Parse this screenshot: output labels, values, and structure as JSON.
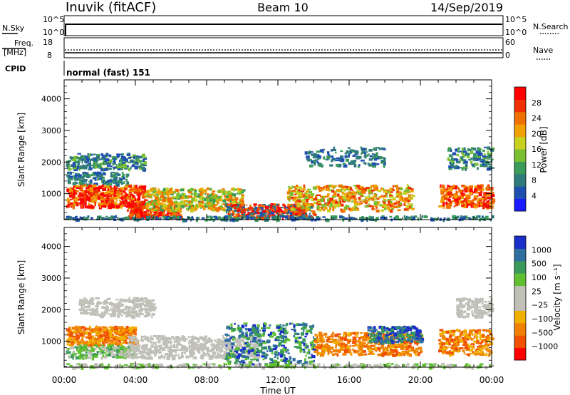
{
  "header": {
    "station": "Inuvik (fitACF)",
    "beam": "Beam 10",
    "date": "14/Sep/2019"
  },
  "top_panels": {
    "nsky": {
      "label": "N.Sky",
      "ticks": [
        "10^5",
        "10^0"
      ],
      "right_label": "N.Search",
      "right_ticks": [
        "10^5",
        "10^0"
      ]
    },
    "freq": {
      "label_line1": "Freq.",
      "label_line2": "[MHz]",
      "ticks": [
        "18",
        "8"
      ],
      "right_label": "Nave",
      "right_ticks": [
        "60",
        "0"
      ]
    },
    "cpid": {
      "label": "CPID",
      "value": "normal (fast) 151"
    }
  },
  "colors": {
    "power_scale": [
      "#1a1aff",
      "#1f4fb0",
      "#2f7a7a",
      "#3a9a5a",
      "#7ac030",
      "#c8d020",
      "#f0a000",
      "#f07000",
      "#f03000",
      "#ff0000"
    ],
    "velocity_scale": [
      "#ff0000",
      "#f05000",
      "#f08000",
      "#f0b000",
      "#c0c0b8",
      "#c0c0b8",
      "#60c030",
      "#3a9a5a",
      "#2f6fa0",
      "#1a2fc8"
    ]
  },
  "chart_data": [
    {
      "type": "heatmap",
      "title": "",
      "xlabel": "Time UT",
      "ylabel": "Slant Range [km]",
      "x_ticks": [
        "00:00",
        "04:00",
        "08:00",
        "12:00",
        "16:00",
        "20:00",
        "00:00"
      ],
      "y_ticks": [
        1000,
        2000,
        3000,
        4000
      ],
      "ylim": [
        180,
        4600
      ],
      "colorbar": {
        "label": "Power [dB]",
        "ticks": [
          "28",
          "24",
          "20",
          "16",
          "12",
          "8",
          "4"
        ],
        "range": [
          0,
          30
        ]
      },
      "grid": false
    },
    {
      "type": "heatmap",
      "title": "",
      "xlabel": "Time UT",
      "ylabel": "Slant Range [km]",
      "x_ticks": [
        "00:00",
        "04:00",
        "08:00",
        "12:00",
        "16:00",
        "20:00",
        "00:00"
      ],
      "y_ticks": [
        1000,
        2000,
        3000,
        4000
      ],
      "ylim": [
        180,
        4600
      ],
      "colorbar": {
        "label": "Velocity [m s⁻¹]",
        "ticks": [
          "1000",
          "500",
          "100",
          "25",
          "−25",
          "−100",
          "−500",
          "−1000"
        ],
        "range": [
          -1000,
          1000
        ]
      },
      "grid": false
    }
  ]
}
